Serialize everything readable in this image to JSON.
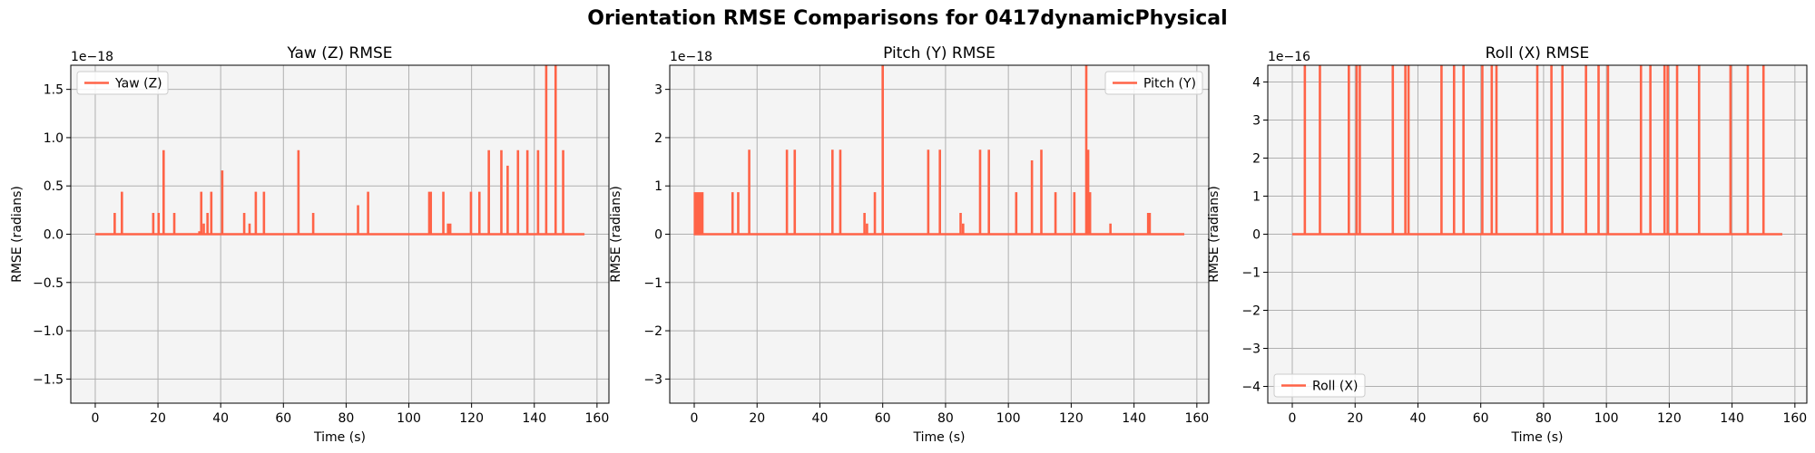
{
  "figure": {
    "title": "Orientation RMSE Comparisons for 0417dynamicPhysical",
    "line_color": "#FF6347",
    "plot_background": "#F4F4F4",
    "grid_color": "#B0B0B0"
  },
  "chart_data": [
    {
      "type": "line",
      "title": "Yaw (Z) RMSE",
      "xlabel": "Time (s)",
      "ylabel": "RMSE (radians)",
      "offset_text": "1e−18",
      "xlim": [
        -7.8,
        163.8
      ],
      "ylim": [
        -1.75,
        1.75
      ],
      "xticks": [
        0,
        20,
        40,
        60,
        80,
        100,
        120,
        140,
        160
      ],
      "xtick_labels": [
        "0",
        "20",
        "40",
        "60",
        "80",
        "100",
        "120",
        "140",
        "160"
      ],
      "yticks": [
        -1.5,
        -1.0,
        -0.5,
        0.0,
        0.5,
        1.0,
        1.5
      ],
      "ytick_labels": [
        "−1.5",
        "−1.0",
        "−0.5",
        "0.0",
        "0.5",
        "1.0",
        "1.5"
      ],
      "grid": true,
      "legend_position": "upper left",
      "x_range": [
        0,
        156
      ],
      "series": [
        {
          "name": "Yaw (Z)",
          "spikes": [
            [
              6.2,
              0.22
            ],
            [
              8.5,
              0.44
            ],
            [
              18.5,
              0.22
            ],
            [
              20.2,
              0.22
            ],
            [
              21.8,
              0.87
            ],
            [
              25.2,
              0.22
            ],
            [
              33.2,
              0.03
            ],
            [
              33.8,
              0.44
            ],
            [
              34.6,
              0.11
            ],
            [
              35.8,
              0.22
            ],
            [
              37.0,
              0.44
            ],
            [
              40.5,
              0.66
            ],
            [
              47.5,
              0.22
            ],
            [
              49.2,
              0.11
            ],
            [
              51.2,
              0.44
            ],
            [
              53.8,
              0.44
            ],
            [
              64.8,
              0.87
            ],
            [
              69.5,
              0.22
            ],
            [
              83.8,
              0.3
            ],
            [
              87.0,
              0.44
            ],
            [
              106.5,
              0.44
            ],
            [
              107.0,
              0.44
            ],
            [
              111.0,
              0.44
            ],
            [
              112.5,
              0.11
            ],
            [
              113.2,
              0.11
            ],
            [
              119.8,
              0.44
            ],
            [
              122.5,
              0.44
            ],
            [
              125.5,
              0.87
            ],
            [
              129.5,
              0.87
            ],
            [
              131.5,
              0.71
            ],
            [
              134.8,
              0.87
            ],
            [
              137.8,
              0.87
            ],
            [
              141.2,
              0.87
            ],
            [
              143.8,
              1.75
            ],
            [
              146.8,
              1.75
            ],
            [
              149.2,
              0.87
            ]
          ]
        }
      ]
    },
    {
      "type": "line",
      "title": "Pitch (Y) RMSE",
      "xlabel": "Time (s)",
      "ylabel": "RMSE (radians)",
      "offset_text": "1e−18",
      "xlim": [
        -7.8,
        163.8
      ],
      "ylim": [
        -3.5,
        3.5
      ],
      "xticks": [
        0,
        20,
        40,
        60,
        80,
        100,
        120,
        140,
        160
      ],
      "xtick_labels": [
        "0",
        "20",
        "40",
        "60",
        "80",
        "100",
        "120",
        "140",
        "160"
      ],
      "yticks": [
        -3,
        -2,
        -1,
        0,
        1,
        2,
        3
      ],
      "ytick_labels": [
        "−3",
        "−2",
        "−1",
        "0",
        "1",
        "2",
        "3"
      ],
      "grid": true,
      "legend_position": "upper right",
      "x_range": [
        0,
        156
      ],
      "series": [
        {
          "name": "Pitch (Y)",
          "spikes": [
            [
              0.2,
              0.87
            ],
            [
              0.6,
              0.87
            ],
            [
              1.0,
              0.87
            ],
            [
              1.5,
              0.87
            ],
            [
              2.0,
              0.87
            ],
            [
              2.6,
              0.87
            ],
            [
              12.2,
              0.87
            ],
            [
              14.0,
              0.87
            ],
            [
              17.5,
              1.75
            ],
            [
              29.5,
              1.75
            ],
            [
              32.0,
              1.75
            ],
            [
              44.0,
              1.75
            ],
            [
              46.5,
              1.75
            ],
            [
              54.2,
              0.44
            ],
            [
              55.0,
              0.22
            ],
            [
              57.5,
              0.87
            ],
            [
              60.0,
              3.5
            ],
            [
              74.5,
              1.75
            ],
            [
              78.2,
              1.75
            ],
            [
              84.8,
              0.44
            ],
            [
              85.6,
              0.22
            ],
            [
              91.0,
              1.75
            ],
            [
              93.8,
              1.75
            ],
            [
              102.5,
              0.87
            ],
            [
              107.5,
              1.53
            ],
            [
              110.5,
              1.75
            ],
            [
              115.0,
              0.87
            ],
            [
              121.0,
              0.87
            ],
            [
              124.8,
              3.5
            ],
            [
              125.4,
              1.75
            ],
            [
              126.0,
              0.87
            ],
            [
              132.5,
              0.22
            ],
            [
              144.5,
              0.44
            ],
            [
              145.0,
              0.44
            ]
          ]
        }
      ]
    },
    {
      "type": "line",
      "title": "Roll (X) RMSE",
      "xlabel": "Time (s)",
      "ylabel": "RMSE (radians)",
      "offset_text": "1e−16",
      "xlim": [
        -7.8,
        163.8
      ],
      "ylim": [
        -4.44,
        4.44
      ],
      "xticks": [
        0,
        20,
        40,
        60,
        80,
        100,
        120,
        140,
        160
      ],
      "xtick_labels": [
        "0",
        "20",
        "40",
        "60",
        "80",
        "100",
        "120",
        "140",
        "160"
      ],
      "yticks": [
        -4,
        -3,
        -2,
        -1,
        0,
        1,
        2,
        3,
        4
      ],
      "ytick_labels": [
        "−4",
        "−3",
        "−2",
        "−1",
        "0",
        "1",
        "2",
        "3",
        "4"
      ],
      "grid": true,
      "legend_position": "lower left",
      "x_range": [
        0,
        156
      ],
      "series": [
        {
          "name": "Roll (X)",
          "spikes": [
            [
              4.0,
              4.44
            ],
            [
              8.8,
              4.44
            ],
            [
              18.0,
              4.44
            ],
            [
              20.5,
              4.44
            ],
            [
              21.5,
              4.44
            ],
            [
              32.0,
              4.44
            ],
            [
              36.0,
              4.44
            ],
            [
              37.0,
              4.44
            ],
            [
              47.5,
              4.44
            ],
            [
              51.5,
              4.44
            ],
            [
              54.5,
              4.44
            ],
            [
              60.5,
              4.44
            ],
            [
              63.5,
              4.44
            ],
            [
              65.0,
              4.44
            ],
            [
              78.0,
              4.44
            ],
            [
              82.5,
              4.44
            ],
            [
              86.0,
              4.44
            ],
            [
              93.5,
              4.44
            ],
            [
              97.5,
              4.44
            ],
            [
              100.5,
              4.44
            ],
            [
              111.0,
              4.44
            ],
            [
              114.0,
              4.44
            ],
            [
              118.5,
              4.44
            ],
            [
              119.5,
              4.44
            ],
            [
              122.5,
              4.44
            ],
            [
              129.5,
              4.44
            ],
            [
              139.5,
              4.44
            ],
            [
              145.0,
              4.44
            ],
            [
              150.0,
              4.44
            ]
          ]
        }
      ]
    }
  ]
}
